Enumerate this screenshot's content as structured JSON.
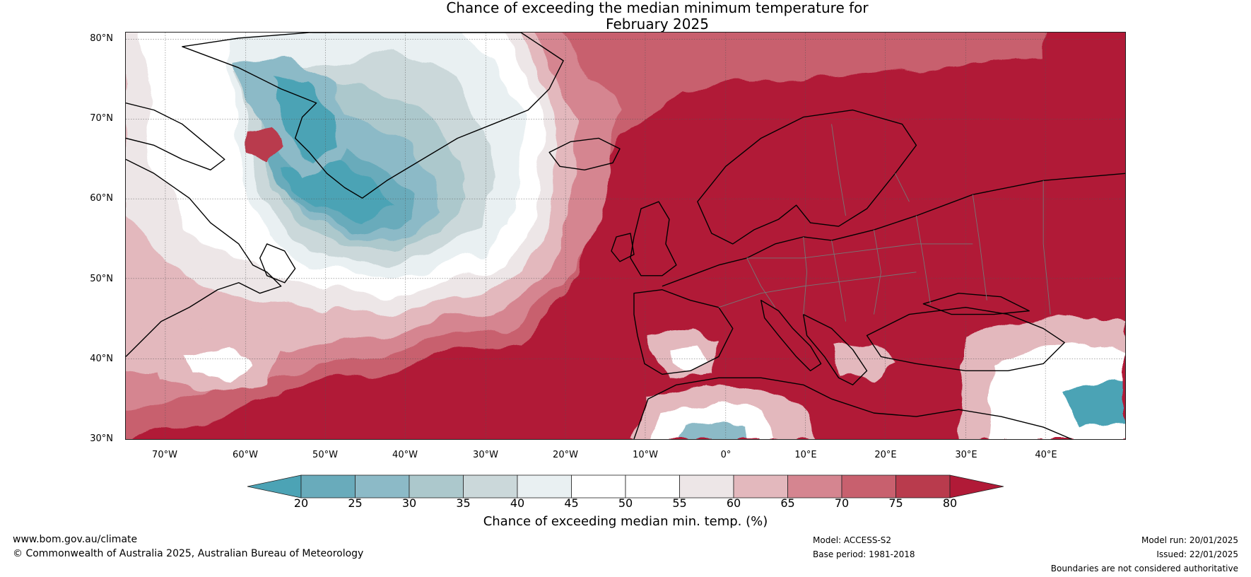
{
  "title": {
    "line1": "Chance of exceeding the median minimum temperature for",
    "line2": "February 2025"
  },
  "map": {
    "lat_labels": [
      "80°N",
      "70°N",
      "60°N",
      "50°N",
      "40°N",
      "30°N"
    ],
    "lon_labels": [
      "70°W",
      "60°W",
      "50°W",
      "40°W",
      "30°W",
      "20°W",
      "10°W",
      "0°",
      "10°E",
      "20°E",
      "30°E",
      "40°E"
    ],
    "lat_range": [
      30,
      81
    ],
    "lon_range": [
      -75,
      50
    ]
  },
  "colorbar": {
    "ticks": [
      "20",
      "25",
      "30",
      "35",
      "40",
      "45",
      "50",
      "55",
      "60",
      "65",
      "70",
      "75",
      "80"
    ],
    "label": "Chance of exceeding median min. temp. (%)",
    "colors": [
      "#4ca3b5",
      "#69abbb",
      "#8cbac7",
      "#acc8cc",
      "#cbd8da",
      "#e9f0f2",
      "#ffffff",
      "#ffffff",
      "#ede6e7",
      "#e3b8bd",
      "#d58590",
      "#c8606e",
      "#b93b4d",
      "#b11a37"
    ]
  },
  "footer": {
    "website": "www.bom.gov.au/climate",
    "copyright": "© Commonwealth of Australia 2025, Australian Bureau of Meteorology",
    "model": "Model: ACCESS-S2",
    "base_period": "Base period: 1981-2018",
    "model_run": "Model run: 20/01/2025",
    "issued": "Issued: 22/01/2025",
    "disclaimer": "Boundaries are not considered authoritative"
  }
}
